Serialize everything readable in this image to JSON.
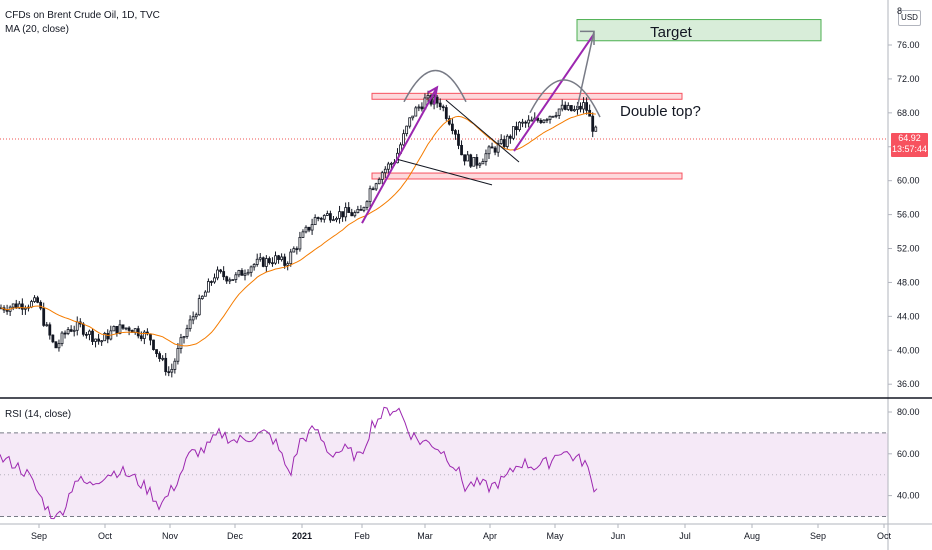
{
  "legend": {
    "symbol": "CFDs on Brent Crude Oil, 1D, TVC",
    "ma": "MA (20, close)",
    "rsi": "RSI (14, close)"
  },
  "price_axis": {
    "currency": "USD",
    "last_price": "64.92",
    "countdown": "13:57:44",
    "top_partial": "8",
    "ticks": [
      "76.00",
      "72.00",
      "68.00",
      "64.00",
      "60.00",
      "56.00",
      "52.00",
      "48.00",
      "44.00",
      "40.00",
      "36.00"
    ]
  },
  "rsi_axis": {
    "ticks": [
      "80.00",
      "60.00",
      "40.00"
    ]
  },
  "time_axis": {
    "ticks": [
      "Sep",
      "Oct",
      "Nov",
      "Dec",
      "2021",
      "Feb",
      "Mar",
      "Apr",
      "May",
      "Jun",
      "Jul",
      "Aug",
      "Sep",
      "Oct"
    ]
  },
  "annotations": {
    "target": "Target",
    "double_top": "Double top?"
  },
  "colors": {
    "up": "#26a69a",
    "down": "#ef5350",
    "candle": "#131722",
    "ma": "#f57c00",
    "rsi": "#9c27b0",
    "trend": "#9c27b0",
    "zone_red": "#f7525f",
    "zone_green": "#4caf50"
  },
  "chart_data": [
    {
      "type": "line",
      "title": "CFDs on Brent Crude Oil, 1D, TVC",
      "x": [
        "Aug",
        "Sep",
        "Oct",
        "Nov",
        "Dec",
        "2021",
        "Feb",
        "Mar",
        "Apr",
        "May"
      ],
      "series": [
        {
          "name": "MA (20, close)",
          "values": [
            44.8,
            43.2,
            42.1,
            41.6,
            46.5,
            50.8,
            56.0,
            64.0,
            64.5,
            67.5
          ]
        }
      ],
      "ylim": [
        35,
        80
      ],
      "last_value": 64.92,
      "levels": [
        70.0,
        60.5
      ],
      "target_zone": [
        76.5,
        79.0
      ]
    },
    {
      "type": "line",
      "title": "RSI (14, close)",
      "x": [
        "Aug",
        "Sep",
        "Oct",
        "Nov",
        "Dec",
        "2021",
        "Feb",
        "Mar",
        "Apr",
        "May"
      ],
      "series": [
        {
          "name": "RSI (14, close)",
          "values": [
            58,
            32,
            48,
            38,
            68,
            66,
            74,
            66,
            42,
            58
          ]
        }
      ],
      "ylim": [
        28,
        84
      ],
      "bands": [
        30,
        70
      ]
    }
  ]
}
